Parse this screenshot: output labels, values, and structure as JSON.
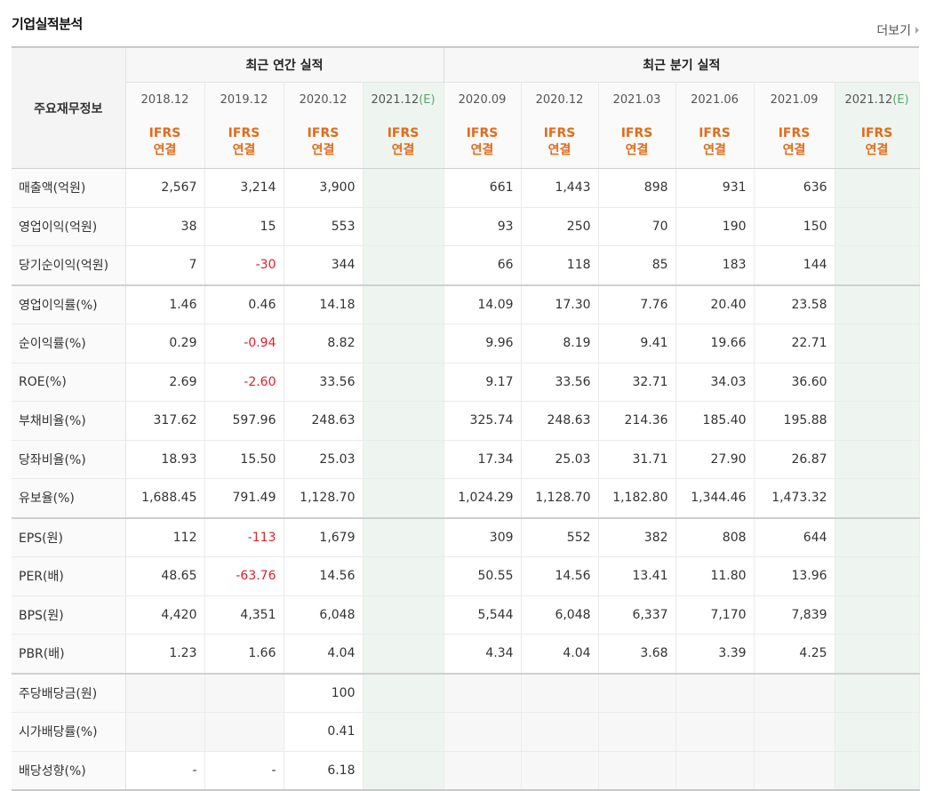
{
  "section": {
    "title": "기업실적분석",
    "more_label": "더보기"
  },
  "header": {
    "row_label": "주요재무정보",
    "annual_group": "최근 연간 실적",
    "quarter_group": "최근 분기 실적",
    "periods": [
      "2018.12",
      "2019.12",
      "2020.12",
      "2021.12(E)",
      "2020.09",
      "2020.12",
      "2021.03",
      "2021.06",
      "2021.09",
      "2021.12(E)"
    ],
    "estimate_flags": [
      false,
      false,
      false,
      true,
      false,
      false,
      false,
      false,
      false,
      true
    ],
    "std_line1": "IFRS",
    "std_line2": "연결"
  },
  "rows": [
    {
      "label": "매출액(억원)",
      "values": [
        "2,567",
        "3,214",
        "3,900",
        "",
        "661",
        "1,443",
        "898",
        "931",
        "636",
        ""
      ],
      "group_start": false
    },
    {
      "label": "영업이익(억원)",
      "values": [
        "38",
        "15",
        "553",
        "",
        "93",
        "250",
        "70",
        "190",
        "150",
        ""
      ],
      "group_start": false
    },
    {
      "label": "당기순이익(억원)",
      "values": [
        "7",
        "-30",
        "344",
        "",
        "66",
        "118",
        "85",
        "183",
        "144",
        ""
      ],
      "group_start": false
    },
    {
      "label": "영업이익률(%)",
      "values": [
        "1.46",
        "0.46",
        "14.18",
        "",
        "14.09",
        "17.30",
        "7.76",
        "20.40",
        "23.58",
        ""
      ],
      "group_start": true
    },
    {
      "label": "순이익률(%)",
      "values": [
        "0.29",
        "-0.94",
        "8.82",
        "",
        "9.96",
        "8.19",
        "9.41",
        "19.66",
        "22.71",
        ""
      ],
      "group_start": false
    },
    {
      "label": "ROE(%)",
      "values": [
        "2.69",
        "-2.60",
        "33.56",
        "",
        "9.17",
        "33.56",
        "32.71",
        "34.03",
        "36.60",
        ""
      ],
      "group_start": false
    },
    {
      "label": "부채비율(%)",
      "values": [
        "317.62",
        "597.96",
        "248.63",
        "",
        "325.74",
        "248.63",
        "214.36",
        "185.40",
        "195.88",
        ""
      ],
      "group_start": false
    },
    {
      "label": "당좌비율(%)",
      "values": [
        "18.93",
        "15.50",
        "25.03",
        "",
        "17.34",
        "25.03",
        "31.71",
        "27.90",
        "26.87",
        ""
      ],
      "group_start": false
    },
    {
      "label": "유보율(%)",
      "values": [
        "1,688.45",
        "791.49",
        "1,128.70",
        "",
        "1,024.29",
        "1,128.70",
        "1,182.80",
        "1,344.46",
        "1,473.32",
        ""
      ],
      "group_start": false
    },
    {
      "label": "EPS(원)",
      "values": [
        "112",
        "-113",
        "1,679",
        "",
        "309",
        "552",
        "382",
        "808",
        "644",
        ""
      ],
      "group_start": true
    },
    {
      "label": "PER(배)",
      "values": [
        "48.65",
        "-63.76",
        "14.56",
        "",
        "50.55",
        "14.56",
        "13.41",
        "11.80",
        "13.96",
        ""
      ],
      "group_start": false
    },
    {
      "label": "BPS(원)",
      "values": [
        "4,420",
        "4,351",
        "6,048",
        "",
        "5,544",
        "6,048",
        "6,337",
        "7,170",
        "7,839",
        ""
      ],
      "group_start": false
    },
    {
      "label": "PBR(배)",
      "values": [
        "1.23",
        "1.66",
        "4.04",
        "",
        "4.34",
        "4.04",
        "3.68",
        "3.39",
        "4.25",
        ""
      ],
      "group_start": false
    },
    {
      "label": "주당배당금(원)",
      "values": [
        "",
        "",
        "100",
        "",
        "",
        "",
        "",
        "",
        "",
        ""
      ],
      "group_start": true,
      "blank_cells": [
        0,
        1,
        4,
        5,
        6,
        7,
        8,
        9
      ]
    },
    {
      "label": "시가배당률(%)",
      "values": [
        "",
        "",
        "0.41",
        "",
        "",
        "",
        "",
        "",
        "",
        ""
      ],
      "group_start": false,
      "blank_cells": [
        0,
        1,
        4,
        5,
        6,
        7,
        8,
        9
      ]
    },
    {
      "label": "배당성향(%)",
      "values": [
        "-",
        "-",
        "6.18",
        "",
        "",
        "",
        "",
        "",
        "",
        ""
      ],
      "group_start": false,
      "blank_cells": [
        4,
        5,
        6,
        7,
        8,
        9
      ]
    }
  ],
  "colors": {
    "negative": "#e2202b",
    "ifrs": "#e36b1a",
    "estimate_bg": "#eef5f0",
    "estimate_marker": "#5aa56a"
  }
}
